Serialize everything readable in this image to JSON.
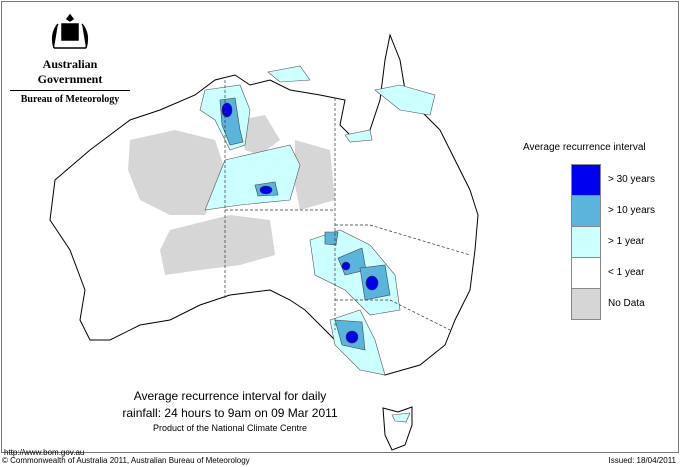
{
  "header": {
    "government": "Australian Government",
    "bureau": "Bureau of Meteorology"
  },
  "legend": {
    "title": "Average recurrence interval",
    "items": [
      {
        "label": "> 30 years",
        "color": "#0000f0"
      },
      {
        "label": "> 10 years",
        "color": "#5ab4dc"
      },
      {
        "label": "> 1 year",
        "color": "#ccffff"
      },
      {
        "label": "< 1 year",
        "color": "#ffffff"
      },
      {
        "label": "No Data",
        "color": "#d6d6d6"
      }
    ]
  },
  "caption": {
    "line1": "Average recurrence interval for daily",
    "line2": "rainfall: 24 hours to 9am on 09 Mar 2011",
    "line3": "Product of the National Climate Centre"
  },
  "footer": {
    "url": "http://www.bom.gov.au",
    "copyright": "© Commonwealth of Australia 2011, Australian Bureau of Meteorology",
    "issued": "Issued: 18/04/2011"
  }
}
